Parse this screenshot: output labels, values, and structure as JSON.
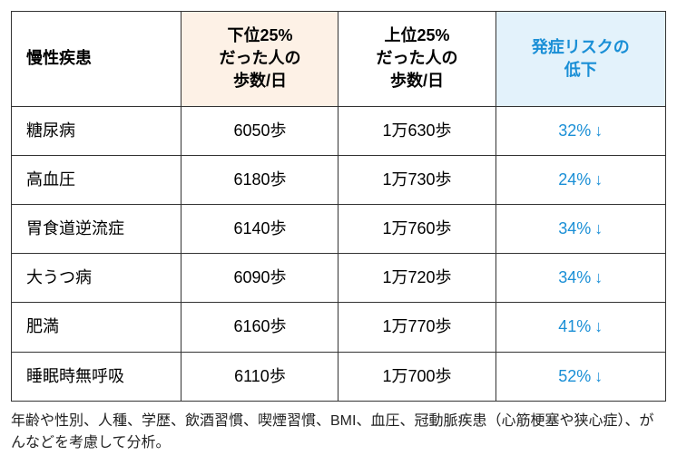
{
  "table": {
    "headers": {
      "disease": "慢性疾患",
      "lower25": "下位25%\nだった人の\n歩数/日",
      "upper25": "上位25%\nだった人の\n歩数/日",
      "risk": "発症リスクの\n低下"
    },
    "rows": [
      {
        "disease": "糖尿病",
        "lower": "6050歩",
        "upper": "1万630歩",
        "risk": "32%"
      },
      {
        "disease": "高血圧",
        "lower": "6180歩",
        "upper": "1万730歩",
        "risk": "24%"
      },
      {
        "disease": "胃食道逆流症",
        "lower": "6140歩",
        "upper": "1万760歩",
        "risk": "34%"
      },
      {
        "disease": "大うつ病",
        "lower": "6090歩",
        "upper": "1万720歩",
        "risk": "34%"
      },
      {
        "disease": "肥満",
        "lower": "6160歩",
        "upper": "1万770歩",
        "risk": "41%"
      },
      {
        "disease": "睡眠時無呼吸",
        "lower": "6110歩",
        "upper": "1万700歩",
        "risk": "52%"
      }
    ],
    "arrow": "↓"
  },
  "footnote": "年齢や性別、人種、学歴、飲酒習慣、喫煙習慣、BMI、血圧、冠動脈疾患（心筋梗塞や狭心症）、がんなどを考慮して分析。",
  "colors": {
    "header_lower_bg": "#fdf1e6",
    "header_risk_bg": "#e3f2fb",
    "risk_text": "#1a8fd6",
    "border": "#333333"
  }
}
